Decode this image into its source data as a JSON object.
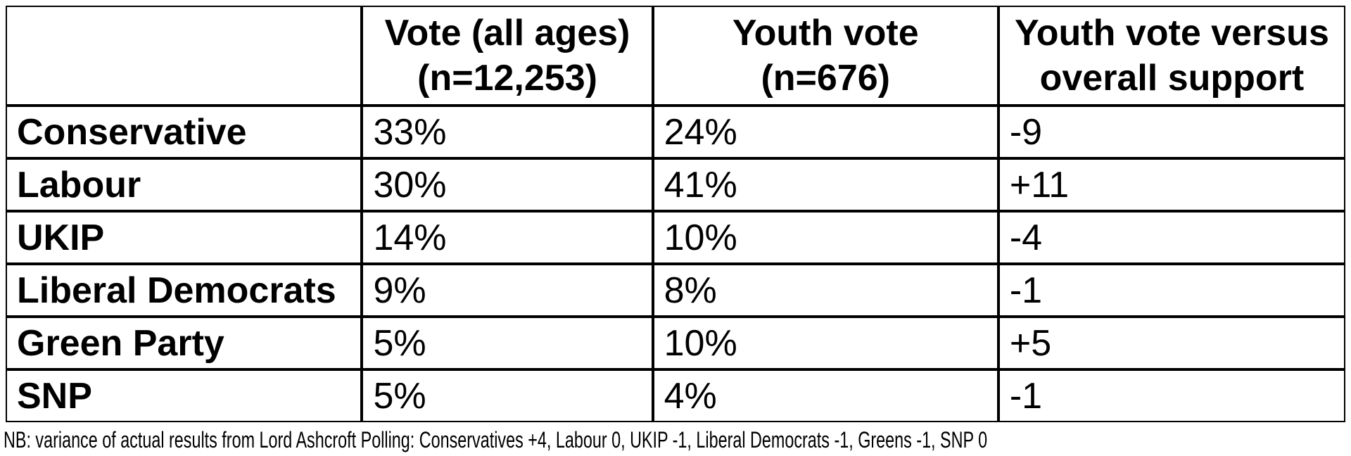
{
  "table": {
    "headers": {
      "party": "",
      "all_ages_line1": "Vote (all ages)",
      "all_ages_line2": "(n=12,253)",
      "youth_line1": "Youth vote",
      "youth_line2": "(n=676)",
      "variance_line1": "Youth vote versus",
      "variance_line2": "overall support"
    },
    "rows": [
      {
        "party": "Conservative",
        "all_ages": "33%",
        "youth": "24%",
        "variance": "-9"
      },
      {
        "party": "Labour",
        "all_ages": "30%",
        "youth": "41%",
        "variance": "+11"
      },
      {
        "party": "UKIP",
        "all_ages": "14%",
        "youth": "10%",
        "variance": "-4"
      },
      {
        "party": "Liberal Democrats",
        "all_ages": "9%",
        "youth": "8%",
        "variance": "-1"
      },
      {
        "party": "Green Party",
        "all_ages": "5%",
        "youth": "10%",
        "variance": "+5"
      },
      {
        "party": "SNP",
        "all_ages": "5%",
        "youth": "4%",
        "variance": "-1"
      }
    ]
  },
  "note": "NB: variance of actual results from Lord Ashcroft Polling: Conservatives +4, Labour 0, UKIP -1, Liberal Democrats -1, Greens -1, SNP 0",
  "colors": {
    "border": "#000000",
    "text": "#000000",
    "background": "#ffffff"
  }
}
